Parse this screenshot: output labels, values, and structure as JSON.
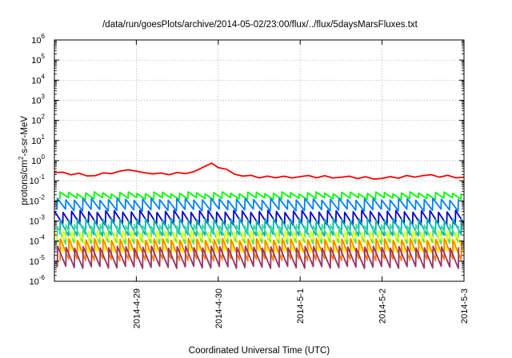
{
  "chart_data": {
    "type": "line",
    "title": "/data/run/goesPlots/archive/2014-05-02/23:00/flux/../flux/5daysMarsFluxes.txt",
    "xlabel": "Coordinated Universal Time (UTC)",
    "ylabel": "protons/cm2-s-sr-MeV",
    "ylabel_parts": {
      "pre": "protons/cm",
      "sup": "2",
      "post": "-s-sr-MeV"
    },
    "x_range": [
      "2014-04-28",
      "2014-05-03"
    ],
    "x_ticks": [
      "2014-4-29",
      "2014-4-30",
      "2014-5-1",
      "2014-5-2",
      "2014-5-3"
    ],
    "y_scale": "log",
    "ylim": [
      1e-06,
      1000000.0
    ],
    "y_tick_exponents": [
      -6,
      -5,
      -4,
      -3,
      -2,
      -1,
      0,
      1,
      2,
      3,
      4,
      5,
      6
    ],
    "y_tick_base": "10",
    "grid": true,
    "sawtooth_period_hours": 2.5,
    "series": [
      {
        "color": "#ff0000",
        "x_days": [
          0,
          0.5,
          0.8,
          0.9,
          1.0,
          1.1,
          1.2,
          1.4,
          1.7,
          1.85,
          1.92,
          2.0,
          2.3,
          2.7,
          3.0,
          3.5,
          4.0,
          4.5,
          5.0
        ],
        "values": [
          0.25,
          0.18,
          0.3,
          0.35,
          0.3,
          0.25,
          0.22,
          0.2,
          0.28,
          0.55,
          0.75,
          0.45,
          0.17,
          0.14,
          0.16,
          0.15,
          0.13,
          0.18,
          0.15
        ]
      },
      {
        "color": "#00ff00",
        "peak": 0.025,
        "trough": 0.013
      },
      {
        "color": "#0080ff",
        "peak": 0.012,
        "trough": 0.0035
      },
      {
        "color": "#0000cc",
        "peak": 0.003,
        "trough": 0.0007
      },
      {
        "color": "#00b0b0",
        "peak": 0.0012,
        "trough": 0.0002
      },
      {
        "color": "#40e0a0",
        "peak": 0.0006,
        "trough": 8e-05
      },
      {
        "color": "#ffff00",
        "peak": 0.0003,
        "trough": 3e-05
      },
      {
        "color": "#ff8000",
        "peak": 0.00012,
        "trough": 1.2e-05
      },
      {
        "color": "#993366",
        "peak": 5e-05,
        "trough": 5e-06
      }
    ]
  }
}
